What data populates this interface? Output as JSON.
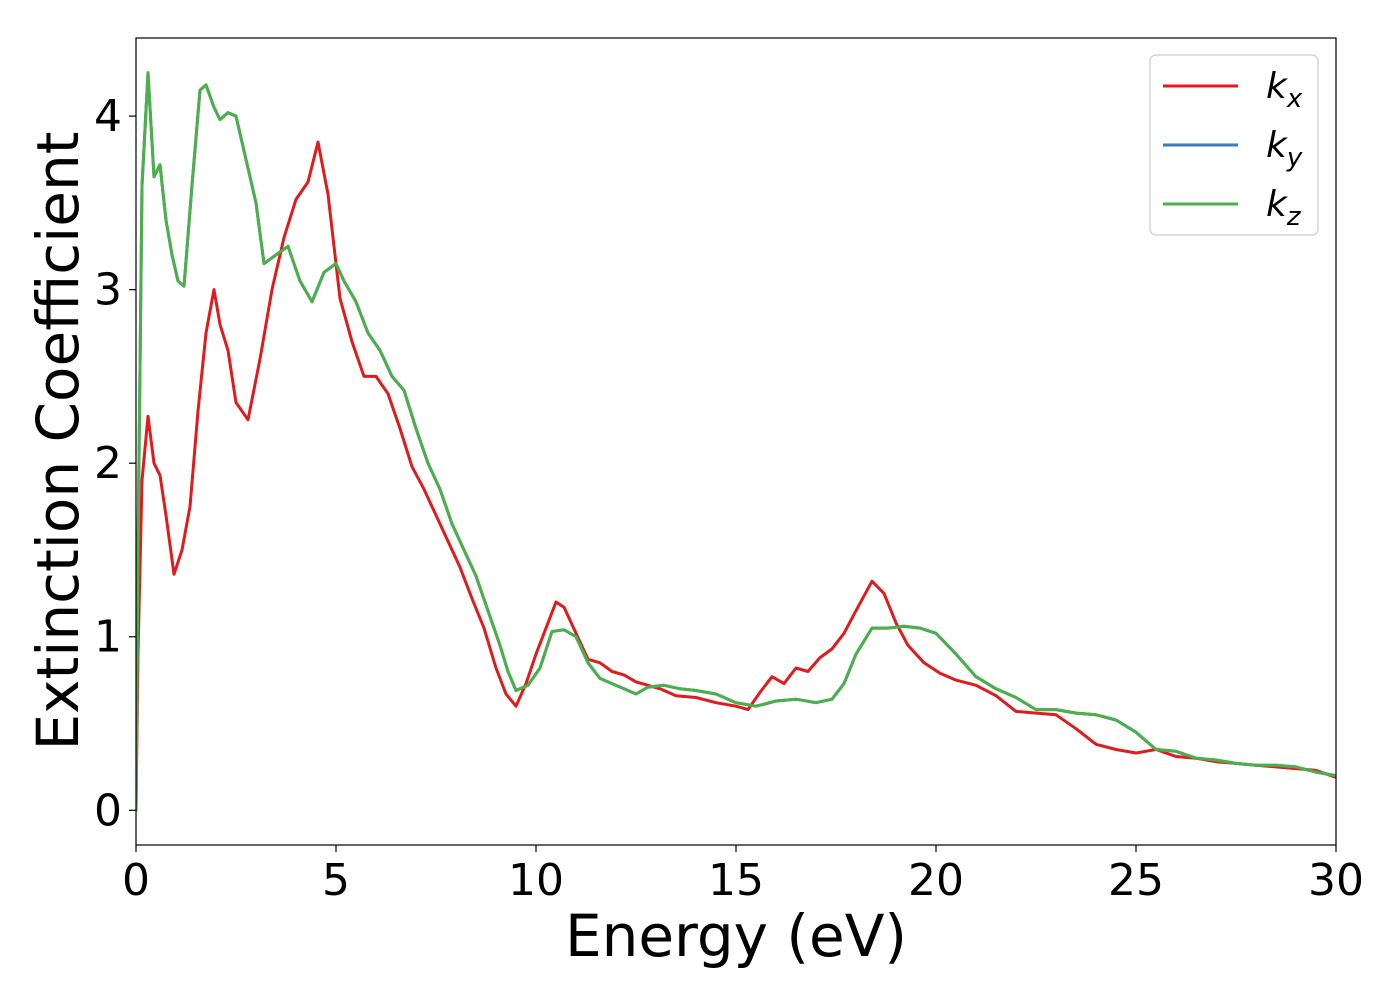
{
  "chart_data": {
    "type": "line",
    "title": "",
    "xlabel": "Energy (eV)",
    "ylabel": "Extinction Coefficient",
    "xlim": [
      0,
      30
    ],
    "ylim": [
      -0.2,
      4.45
    ],
    "xticks": [
      0,
      5,
      10,
      15,
      20,
      25,
      30
    ],
    "yticks": [
      0,
      1,
      2,
      3,
      4
    ],
    "grid": false,
    "legend_position": "top-right",
    "series": [
      {
        "name": "k_x",
        "label_base": "k",
        "label_sub": "x",
        "color": "#e31a1c",
        "x": [
          0,
          0.05,
          0.15,
          0.3,
          0.45,
          0.6,
          0.75,
          0.95,
          1.15,
          1.35,
          1.55,
          1.75,
          1.95,
          2.1,
          2.3,
          2.5,
          2.8,
          3.1,
          3.4,
          3.7,
          4.0,
          4.3,
          4.55,
          4.8,
          5.1,
          5.4,
          5.7,
          6.0,
          6.3,
          6.6,
          6.9,
          7.2,
          7.5,
          7.8,
          8.1,
          8.4,
          8.7,
          9.0,
          9.25,
          9.5,
          9.75,
          10.0,
          10.25,
          10.5,
          10.7,
          11.0,
          11.3,
          11.6,
          11.9,
          12.2,
          12.5,
          12.8,
          13.1,
          13.5,
          14.0,
          14.5,
          15.0,
          15.3,
          15.6,
          15.9,
          16.2,
          16.5,
          16.8,
          17.1,
          17.4,
          17.7,
          18.0,
          18.4,
          18.7,
          19.0,
          19.3,
          19.7,
          20.1,
          20.5,
          21.0,
          21.5,
          22.0,
          22.5,
          23.0,
          23.5,
          24.0,
          24.5,
          25.0,
          25.5,
          26.0,
          26.5,
          27.0,
          27.5,
          28.0,
          28.5,
          29.0,
          29.5,
          30.0
        ],
        "y": [
          0.0,
          0.9,
          1.9,
          2.27,
          2.0,
          1.93,
          1.7,
          1.36,
          1.5,
          1.75,
          2.3,
          2.75,
          3.0,
          2.8,
          2.65,
          2.35,
          2.25,
          2.6,
          3.0,
          3.3,
          3.52,
          3.62,
          3.85,
          3.55,
          2.95,
          2.7,
          2.5,
          2.5,
          2.4,
          2.2,
          1.98,
          1.85,
          1.7,
          1.55,
          1.4,
          1.22,
          1.05,
          0.82,
          0.67,
          0.6,
          0.73,
          0.9,
          1.05,
          1.2,
          1.17,
          1.02,
          0.87,
          0.85,
          0.8,
          0.78,
          0.74,
          0.72,
          0.7,
          0.66,
          0.65,
          0.62,
          0.6,
          0.58,
          0.68,
          0.77,
          0.73,
          0.82,
          0.8,
          0.88,
          0.93,
          1.02,
          1.15,
          1.32,
          1.25,
          1.08,
          0.95,
          0.85,
          0.79,
          0.75,
          0.72,
          0.66,
          0.57,
          0.56,
          0.55,
          0.47,
          0.38,
          0.35,
          0.33,
          0.35,
          0.31,
          0.3,
          0.28,
          0.27,
          0.26,
          0.25,
          0.24,
          0.23,
          0.19
        ]
      },
      {
        "name": "k_y",
        "label_base": "k",
        "label_sub": "y",
        "color": "#377eb8",
        "x": [
          0,
          0.05,
          0.15,
          0.3,
          0.45,
          0.6,
          0.75,
          0.9,
          1.05,
          1.2,
          1.4,
          1.6,
          1.75,
          1.95,
          2.1,
          2.3,
          2.5,
          2.75,
          3.0,
          3.2,
          3.5,
          3.8,
          4.1,
          4.4,
          4.7,
          5.0,
          5.2,
          5.5,
          5.8,
          6.1,
          6.4,
          6.7,
          7.0,
          7.3,
          7.6,
          7.9,
          8.2,
          8.5,
          8.8,
          9.1,
          9.3,
          9.5,
          9.8,
          10.1,
          10.4,
          10.7,
          11.0,
          11.3,
          11.6,
          11.9,
          12.2,
          12.5,
          12.8,
          13.2,
          13.6,
          14.0,
          14.5,
          15.0,
          15.5,
          16.0,
          16.5,
          17.0,
          17.4,
          17.7,
          18.0,
          18.4,
          18.8,
          19.2,
          19.6,
          20.0,
          20.5,
          21.0,
          21.5,
          22.0,
          22.5,
          23.0,
          23.5,
          24.0,
          24.5,
          25.0,
          25.5,
          26.0,
          26.5,
          27.0,
          27.5,
          28.0,
          28.5,
          29.0,
          29.5,
          30.0
        ],
        "y": [
          0.0,
          1.5,
          3.6,
          4.25,
          3.65,
          3.72,
          3.4,
          3.2,
          3.05,
          3.02,
          3.6,
          4.15,
          4.18,
          4.05,
          3.98,
          4.02,
          4.0,
          3.75,
          3.5,
          3.15,
          3.2,
          3.25,
          3.05,
          2.93,
          3.1,
          3.15,
          3.05,
          2.93,
          2.75,
          2.65,
          2.5,
          2.42,
          2.2,
          2.0,
          1.85,
          1.65,
          1.5,
          1.35,
          1.15,
          0.95,
          0.8,
          0.69,
          0.72,
          0.82,
          1.03,
          1.04,
          1.0,
          0.85,
          0.76,
          0.73,
          0.7,
          0.67,
          0.71,
          0.72,
          0.7,
          0.69,
          0.67,
          0.62,
          0.6,
          0.63,
          0.64,
          0.62,
          0.64,
          0.73,
          0.9,
          1.05,
          1.05,
          1.06,
          1.05,
          1.02,
          0.9,
          0.77,
          0.7,
          0.65,
          0.58,
          0.58,
          0.56,
          0.55,
          0.52,
          0.45,
          0.35,
          0.34,
          0.3,
          0.29,
          0.27,
          0.26,
          0.26,
          0.25,
          0.22,
          0.2
        ]
      },
      {
        "name": "k_z",
        "label_base": "k",
        "label_sub": "z",
        "color": "#4daf4a",
        "x": [
          0,
          0.05,
          0.15,
          0.3,
          0.45,
          0.6,
          0.75,
          0.9,
          1.05,
          1.2,
          1.4,
          1.6,
          1.75,
          1.95,
          2.1,
          2.3,
          2.5,
          2.75,
          3.0,
          3.2,
          3.5,
          3.8,
          4.1,
          4.4,
          4.7,
          5.0,
          5.2,
          5.5,
          5.8,
          6.1,
          6.4,
          6.7,
          7.0,
          7.3,
          7.6,
          7.9,
          8.2,
          8.5,
          8.8,
          9.1,
          9.3,
          9.5,
          9.8,
          10.1,
          10.4,
          10.7,
          11.0,
          11.3,
          11.6,
          11.9,
          12.2,
          12.5,
          12.8,
          13.2,
          13.6,
          14.0,
          14.5,
          15.0,
          15.5,
          16.0,
          16.5,
          17.0,
          17.4,
          17.7,
          18.0,
          18.4,
          18.8,
          19.2,
          19.6,
          20.0,
          20.5,
          21.0,
          21.5,
          22.0,
          22.5,
          23.0,
          23.5,
          24.0,
          24.5,
          25.0,
          25.5,
          26.0,
          26.5,
          27.0,
          27.5,
          28.0,
          28.5,
          29.0,
          29.5,
          30.0
        ],
        "y": [
          0.0,
          1.5,
          3.6,
          4.25,
          3.65,
          3.72,
          3.4,
          3.2,
          3.05,
          3.02,
          3.6,
          4.15,
          4.18,
          4.05,
          3.98,
          4.02,
          4.0,
          3.75,
          3.5,
          3.15,
          3.2,
          3.25,
          3.05,
          2.93,
          3.1,
          3.15,
          3.05,
          2.93,
          2.75,
          2.65,
          2.5,
          2.42,
          2.2,
          2.0,
          1.85,
          1.65,
          1.5,
          1.35,
          1.15,
          0.95,
          0.8,
          0.69,
          0.72,
          0.82,
          1.03,
          1.04,
          1.0,
          0.85,
          0.76,
          0.73,
          0.7,
          0.67,
          0.71,
          0.72,
          0.7,
          0.69,
          0.67,
          0.62,
          0.6,
          0.63,
          0.64,
          0.62,
          0.64,
          0.73,
          0.9,
          1.05,
          1.05,
          1.06,
          1.05,
          1.02,
          0.9,
          0.77,
          0.7,
          0.65,
          0.58,
          0.58,
          0.56,
          0.55,
          0.52,
          0.45,
          0.35,
          0.34,
          0.3,
          0.29,
          0.27,
          0.26,
          0.26,
          0.25,
          0.22,
          0.2
        ]
      }
    ]
  }
}
